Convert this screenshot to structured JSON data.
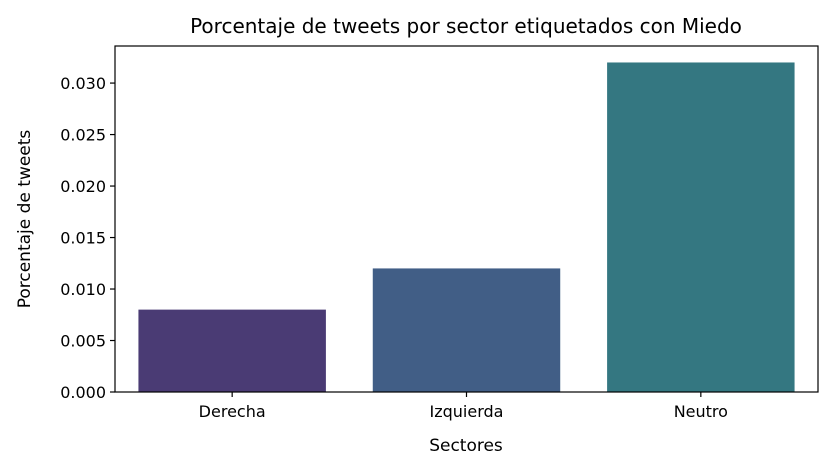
{
  "chart_data": {
    "type": "bar",
    "title": "Porcentaje de tweets por sector etiquetados con Miedo",
    "xlabel": "Sectores",
    "ylabel": "Porcentaje de tweets",
    "categories": [
      "Derecha",
      "Izquierda",
      "Neutro"
    ],
    "values": [
      0.008,
      0.012,
      0.032
    ],
    "colors": [
      "#4a3b74",
      "#415e86",
      "#347781"
    ],
    "ylim": [
      0,
      0.0336
    ],
    "yticks": [
      {
        "value": 0.0,
        "label": "0.000"
      },
      {
        "value": 0.005,
        "label": "0.005"
      },
      {
        "value": 0.01,
        "label": "0.010"
      },
      {
        "value": 0.015,
        "label": "0.015"
      },
      {
        "value": 0.02,
        "label": "0.020"
      },
      {
        "value": 0.025,
        "label": "0.025"
      },
      {
        "value": 0.03,
        "label": "0.030"
      }
    ],
    "grid": false,
    "legend": "none"
  }
}
